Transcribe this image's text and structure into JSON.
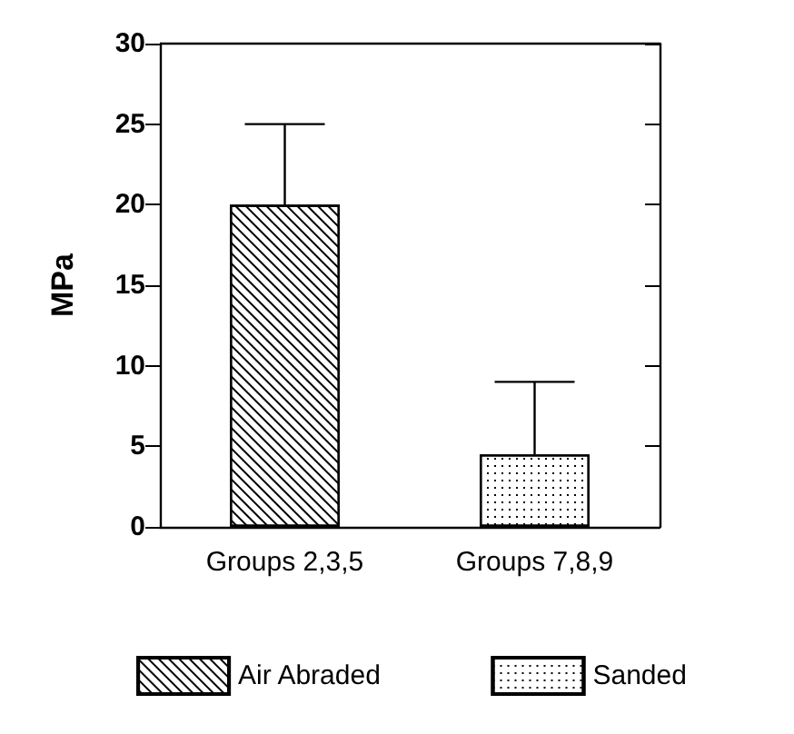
{
  "chart_data": {
    "type": "bar",
    "categories": [
      "Groups 2,3,5",
      "Groups 7,8,9"
    ],
    "ylabel": "MPa",
    "ylim": [
      0,
      30
    ],
    "yticks": [
      0,
      5,
      10,
      15,
      20,
      25,
      30
    ],
    "grid": false,
    "legend": "bottom",
    "series": [
      {
        "name": "Air Abraded",
        "color": "#ffffff",
        "values": [
          20,
          null
        ],
        "errors": [
          [
            20,
            25
          ],
          null
        ]
      },
      {
        "name": "Sanded",
        "color": "#ffffff",
        "values": [
          null,
          4.5
        ],
        "errors": [
          null,
          [
            4.5,
            9
          ]
        ]
      }
    ]
  }
}
